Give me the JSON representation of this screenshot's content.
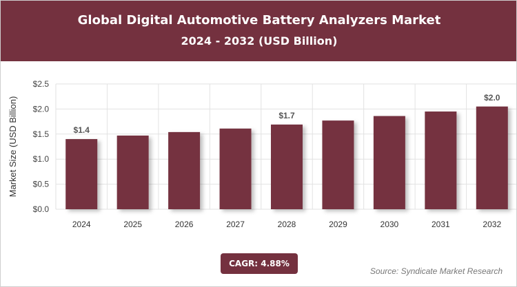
{
  "header": {
    "title": "Global Digital Automotive Battery Analyzers Market",
    "subtitle": "2024 - 2032 (USD Billion)"
  },
  "chart_data": {
    "type": "bar",
    "categories": [
      "2024",
      "2025",
      "2026",
      "2027",
      "2028",
      "2029",
      "2030",
      "2031",
      "2032"
    ],
    "values": [
      1.4,
      1.47,
      1.54,
      1.61,
      1.69,
      1.77,
      1.86,
      1.95,
      2.05
    ],
    "data_labels": [
      {
        "category": "2024",
        "label": "$1.4"
      },
      {
        "category": "2028",
        "label": "$1.7"
      },
      {
        "category": "2032",
        "label": "$2.0"
      }
    ],
    "ylabel": "Market Size (USD Billion)",
    "xlabel": "",
    "ylim": [
      0,
      2.5
    ],
    "yticks": [
      0,
      0.5,
      1.0,
      1.5,
      2.0,
      2.5
    ],
    "ytick_labels": [
      "$0.0",
      "$0.5",
      "$1.0",
      "$1.5",
      "$2.0",
      "$2.5"
    ],
    "grid": true,
    "bar_color": "#74313f"
  },
  "footer": {
    "cagr": "CAGR: 4.88%",
    "source": "Source: Syndicate Market Research"
  }
}
